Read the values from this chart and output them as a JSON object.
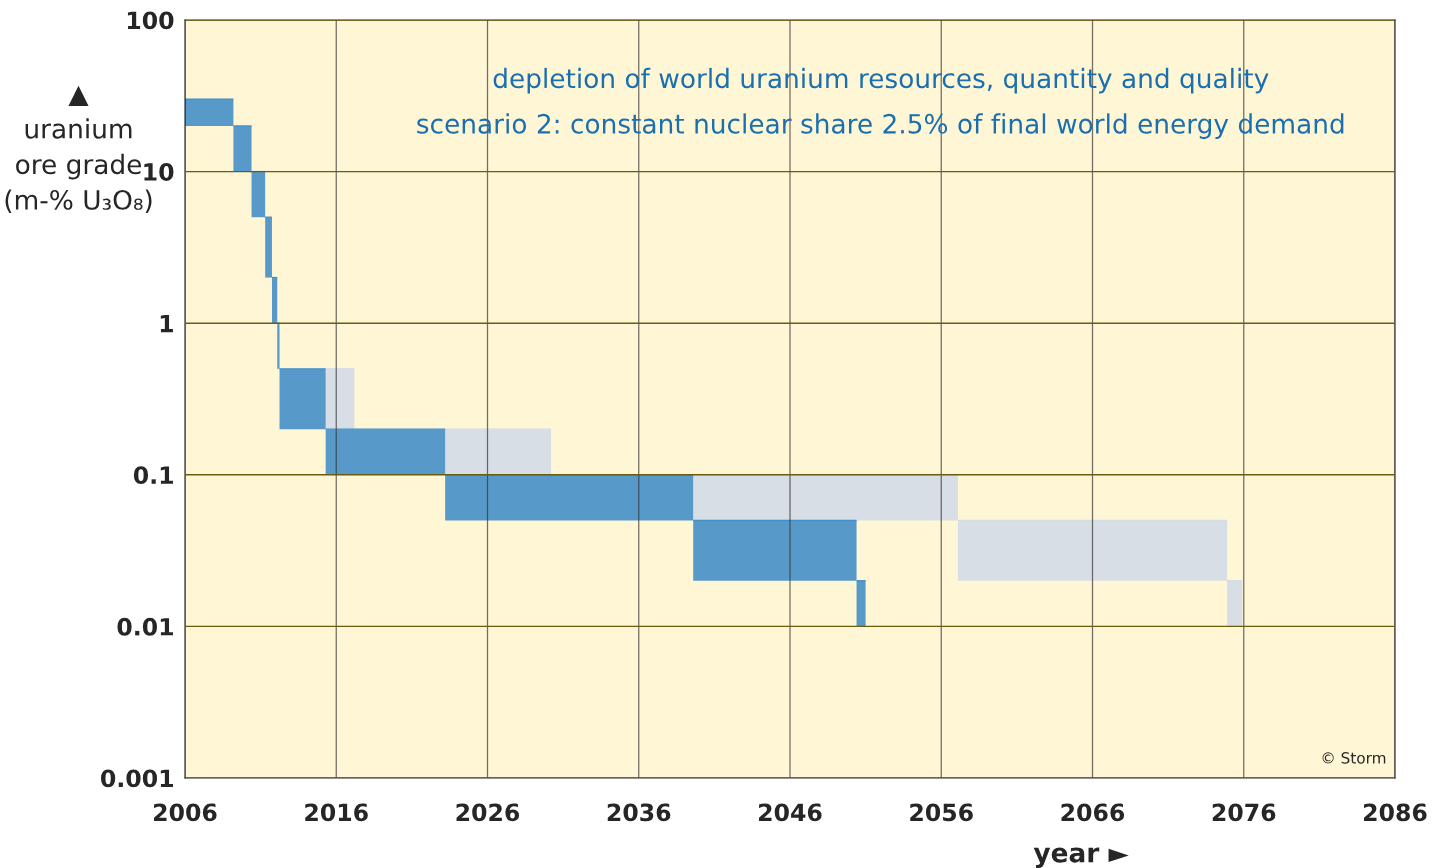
{
  "chart_data": {
    "type": "bar",
    "title": "depletion of world uranium resources, quantity and quality",
    "subtitle": "scenario 2: constant nuclear share 2.5% of final world energy demand",
    "xlabel": "year ►",
    "ylabel": "▲\nuranium\nore grade\n(m-% U₃O₈)",
    "annotations": [
      "© Storm"
    ],
    "series": [
      {
        "color": "#d3dbe7",
        "x": [
          2016.25,
          2026.7,
          2048.35,
          2066.0,
          2075.4
        ],
        "xerrors": [
          [
            2015.3,
            2017.2
          ],
          [
            2023.2,
            2030.2
          ],
          [
            2039.6,
            2057.1
          ],
          [
            2057.1,
            2074.9
          ],
          [
            2074.9,
            2075.9
          ]
        ],
        "base": [
          0.2,
          0.1,
          0.05,
          0.02,
          0.01
        ],
        "values": [
          0.3,
          0.1,
          0.05,
          0.03,
          0.01
        ]
      },
      {
        "color": "#4590c8",
        "x": [
          2007.6,
          2009.8,
          2010.85,
          2011.525,
          2011.925,
          2012.175,
          2013.775,
          2019.25,
          2031.4,
          2045.0,
          2050.7
        ],
        "xerrors": [
          [
            2006,
            2009.2
          ],
          [
            2009.2,
            2010.4
          ],
          [
            2010.4,
            2011.3
          ],
          [
            2011.3,
            2011.75
          ],
          [
            2011.75,
            2012.1
          ],
          [
            2012.1,
            2012.25
          ],
          [
            2012.25,
            2015.3
          ],
          [
            2015.3,
            2023.2
          ],
          [
            2023.2,
            2039.6
          ],
          [
            2039.6,
            2050.4
          ],
          [
            2050.4,
            2051.0
          ]
        ],
        "base": [
          20,
          10,
          5,
          2,
          1,
          0.5,
          0.2,
          0.1,
          0.05,
          0.02,
          0.01
        ],
        "values": [
          10,
          10,
          5,
          3,
          1,
          0.5,
          0.3,
          0.1,
          0.05,
          0.03,
          0.01
        ]
      }
    ],
    "xlim": [
      2006,
      2086
    ],
    "xticks": [
      2006,
      2016,
      2026,
      2036,
      2046,
      2056,
      2066,
      2076,
      2086
    ],
    "ylim": [
      0.001,
      100
    ],
    "yticks": [
      0.001,
      0.01,
      0.1,
      1,
      10,
      100
    ],
    "log": "y",
    "grid": true
  }
}
